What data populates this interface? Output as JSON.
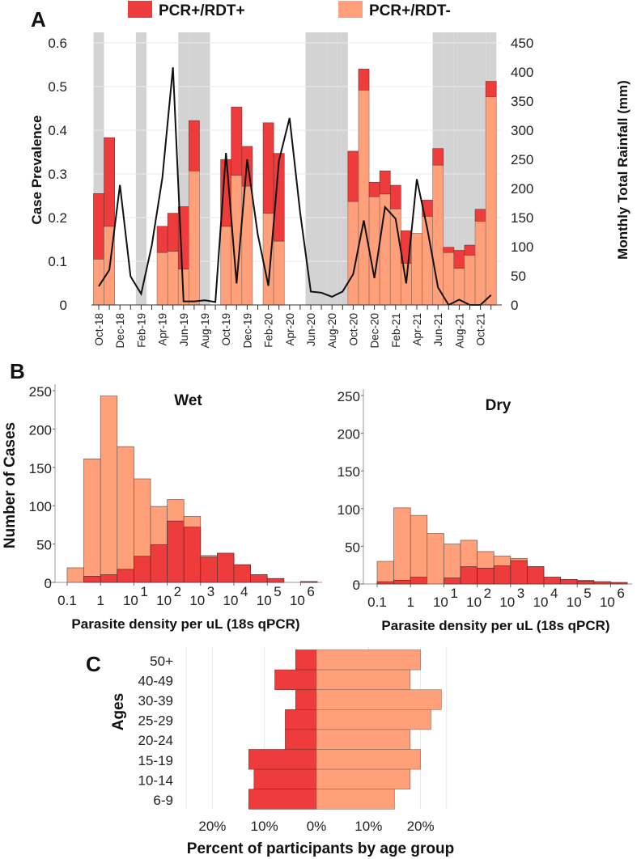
{
  "colors": {
    "pcr_rdt_pos": "#EE3B3B",
    "pcr_rdt_neg": "#FFA07A",
    "shade": "#D3D3D3",
    "rain_line": "#111111"
  },
  "legend": {
    "items": [
      "PCR+/RDT+",
      "PCR+/RDT-"
    ]
  },
  "chart_data": [
    {
      "panel": "A",
      "type": "bar+line",
      "ylabel": "Case Prevalence",
      "y2label": "Monthly Total Rainfall (mm)",
      "ylim": [
        0,
        0.6
      ],
      "y2lim": [
        0,
        450
      ],
      "yticks": [
        "0",
        "0.1",
        "0.2",
        "0.3",
        "0.4",
        "0.5",
        "0.6"
      ],
      "y2ticks": [
        "0",
        "50",
        "100",
        "150",
        "200",
        "250",
        "300",
        "350",
        "400",
        "450"
      ],
      "months": [
        "Oct-18",
        "Nov-18",
        "Dec-18",
        "Jan-19",
        "Feb-19",
        "Mar-19",
        "Apr-19",
        "May-19",
        "Jun-19",
        "Jul-19",
        "Aug-19",
        "Sep-19",
        "Oct-19",
        "Nov-19",
        "Dec-19",
        "Jan-20",
        "Feb-20",
        "Mar-20",
        "Apr-20",
        "May-20",
        "Jun-20",
        "Jul-20",
        "Aug-20",
        "Sep-20",
        "Oct-20",
        "Nov-20",
        "Dec-20",
        "Jan-21",
        "Feb-21",
        "Mar-21",
        "Apr-21",
        "May-21",
        "Jun-21",
        "Jul-21",
        "Aug-21",
        "Sep-21",
        "Oct-21",
        "Nov-21"
      ],
      "tick_labels": [
        "Oct-18",
        "Dec-18",
        "Feb-19",
        "Apr-19",
        "Jun-19",
        "Aug-19",
        "Oct-19",
        "Dec-19",
        "Feb-20",
        "Apr-20",
        "Jun-20",
        "Aug-20",
        "Oct-20",
        "Dec-20",
        "Feb-21",
        "Apr-21",
        "Jun-21",
        "Aug-21",
        "Oct-21"
      ],
      "shaded_months": [
        "Oct-18",
        "Feb-19",
        "Jun-19",
        "Jul-19",
        "Aug-19",
        "Jun-20",
        "Jul-20",
        "Aug-20",
        "Sep-20",
        "Jun-21",
        "Jul-21",
        "Aug-21",
        "Sep-21",
        "Oct-21",
        "Nov-21"
      ],
      "series": [
        {
          "name": "PCR+/RDT-",
          "values": [
            0.105,
            0.18,
            null,
            null,
            null,
            null,
            0.12,
            0.123,
            0.082,
            0.307,
            null,
            null,
            0.18,
            0.297,
            0.272,
            null,
            0.21,
            0.146,
            null,
            null,
            null,
            null,
            null,
            null,
            0.237,
            0.492,
            0.248,
            0.254,
            0.22,
            0.095,
            0.164,
            0.203,
            0.32,
            0.12,
            0.084,
            0.114,
            0.192,
            0.477
          ]
        },
        {
          "name": "PCR+/RDT+",
          "values": [
            0.15,
            0.203,
            null,
            null,
            null,
            null,
            0.06,
            0.087,
            0.143,
            0.115,
            null,
            null,
            0.153,
            0.156,
            0.091,
            null,
            0.207,
            0.201,
            null,
            null,
            null,
            null,
            null,
            null,
            0.115,
            0.048,
            0.033,
            0.053,
            0.054,
            0.075,
            0.0,
            0.037,
            0.038,
            0.012,
            0.041,
            0.023,
            0.027,
            0.035
          ]
        },
        {
          "name": "Monthly Total Rainfall (mm)",
          "axis": "right",
          "values": [
            32,
            60,
            206,
            49,
            19,
            102,
            218,
            408,
            6,
            6,
            8,
            5,
            261,
            37,
            250,
            121,
            33,
            248,
            321,
            158,
            23,
            21,
            14,
            23,
            53,
            145,
            46,
            168,
            148,
            37,
            216,
            130,
            30,
            0,
            9,
            0,
            0,
            17
          ]
        }
      ]
    },
    {
      "panel": "B-wet",
      "type": "histogram",
      "title": "Wet",
      "ylabel": "Number of Cases",
      "xlabel": "Parasite density per uL (18s qPCR)",
      "ylim": [
        0,
        250
      ],
      "yticks": [
        "0",
        "50",
        "100",
        "150",
        "200",
        "250"
      ],
      "xticks": [
        {
          "base": "0.1",
          "exp": ""
        },
        {
          "base": "1",
          "exp": ""
        },
        {
          "base": "10",
          "exp": "1"
        },
        {
          "base": "10",
          "exp": "2"
        },
        {
          "base": "10",
          "exp": "3"
        },
        {
          "base": "10",
          "exp": "4"
        },
        {
          "base": "10",
          "exp": "5"
        },
        {
          "base": "10",
          "exp": "6"
        }
      ],
      "bin_log10_start": -1,
      "bin_log10_width": 0.5,
      "series": [
        {
          "name": "PCR+/RDT-",
          "values": [
            19,
            153,
            233,
            160,
            101,
            50,
            28,
            14,
            2,
            0,
            0,
            0,
            0,
            0,
            0
          ]
        },
        {
          "name": "PCR+/RDT+",
          "values": [
            0,
            8,
            10,
            17,
            34,
            49,
            80,
            72,
            33,
            38,
            23,
            10,
            5,
            0,
            1
          ]
        }
      ]
    },
    {
      "panel": "B-dry",
      "type": "histogram",
      "title": "Dry",
      "xlabel": "Parasite density per uL (18s qPCR)",
      "ylim": [
        0,
        250
      ],
      "yticks": [
        "0",
        "50",
        "100",
        "150",
        "200",
        "250"
      ],
      "xticks": [
        {
          "base": "0.1",
          "exp": ""
        },
        {
          "base": "1",
          "exp": ""
        },
        {
          "base": "10",
          "exp": "1"
        },
        {
          "base": "10",
          "exp": "2"
        },
        {
          "base": "10",
          "exp": "3"
        },
        {
          "base": "10",
          "exp": "4"
        },
        {
          "base": "10",
          "exp": "5"
        },
        {
          "base": "10",
          "exp": "6"
        }
      ],
      "bin_log10_start": -1,
      "bin_log10_width": 0.5,
      "series": [
        {
          "name": "PCR+/RDT-",
          "values": [
            27,
            96,
            82,
            67,
            45,
            35,
            22,
            13,
            3,
            0,
            0,
            0,
            1,
            0,
            0
          ]
        },
        {
          "name": "PCR+/RDT+",
          "values": [
            3,
            5,
            9,
            0,
            8,
            23,
            21,
            24,
            31,
            23,
            9,
            6,
            4,
            3,
            2
          ]
        }
      ]
    },
    {
      "panel": "C",
      "type": "bar",
      "orientation": "horizontal-diverging",
      "ylabel": "Ages",
      "xlabel": "Percent of participants by age group",
      "xticks": [
        "20%",
        "10%",
        "0%",
        "10%",
        "20%"
      ],
      "categories": [
        "50+",
        "40-49",
        "30-39",
        "25-29",
        "20-24",
        "15-19",
        "10-14",
        "6-9"
      ],
      "series": [
        {
          "name": "PCR+/RDT+",
          "side": "left",
          "values": [
            4,
            8,
            4,
            6,
            6,
            13,
            12,
            13
          ]
        },
        {
          "name": "PCR+/RDT-",
          "side": "right",
          "values": [
            20,
            18,
            24,
            22,
            18,
            20,
            18,
            15
          ]
        }
      ]
    }
  ],
  "panel_labels": [
    "A",
    "B",
    "C"
  ]
}
